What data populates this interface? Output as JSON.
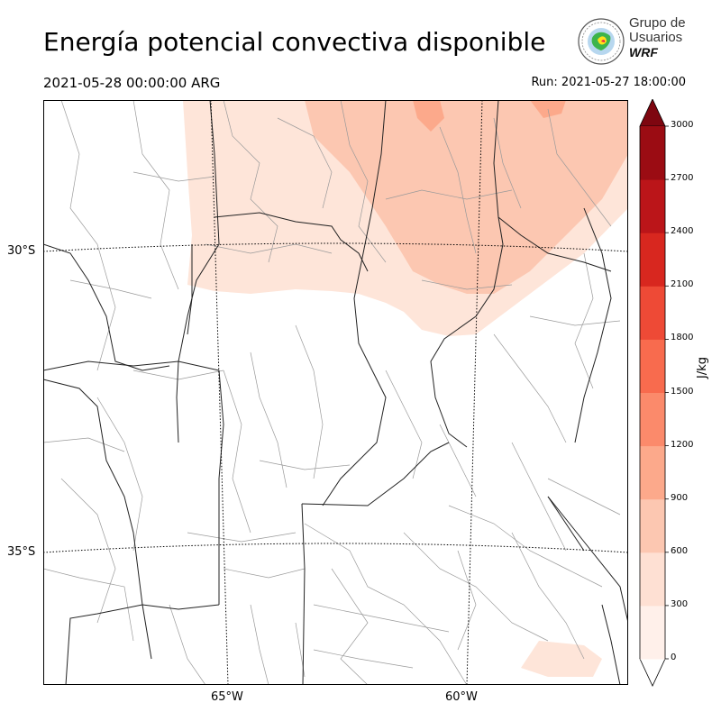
{
  "header": {
    "title": "Energía potencial convectiva disponible",
    "valid_time": "2021-05-28 00:00:00 ARG",
    "run_time": "Run: 2021-05-27 18:00:00"
  },
  "logo": {
    "line1": "Grupo de",
    "line2": "Usuarios",
    "line3": "WRF"
  },
  "map": {
    "lat_labels": [
      "30°S",
      "35°S"
    ],
    "lon_labels": [
      "65°W",
      "60°W"
    ],
    "colors": {
      "province_border": "#222222",
      "department_border": "#9a9a9a",
      "graticule": "#000000",
      "cape_low": "#fee5d9",
      "cape_mid": "#fcbba1",
      "cape_high": "#fc9272"
    }
  },
  "colorbar": {
    "unit": "J/kg",
    "ticks": [
      "0",
      "300",
      "600",
      "900",
      "1200",
      "1500",
      "1800",
      "2100",
      "2400",
      "2700",
      "3000"
    ],
    "colors": [
      "#fff0ea",
      "#fee0d3",
      "#fcc7b1",
      "#fca98b",
      "#fb8a6b",
      "#f86b4e",
      "#ee4a36",
      "#d8271f",
      "#bb1519",
      "#9b0c13",
      "#7e0610"
    ],
    "extend": "both"
  }
}
